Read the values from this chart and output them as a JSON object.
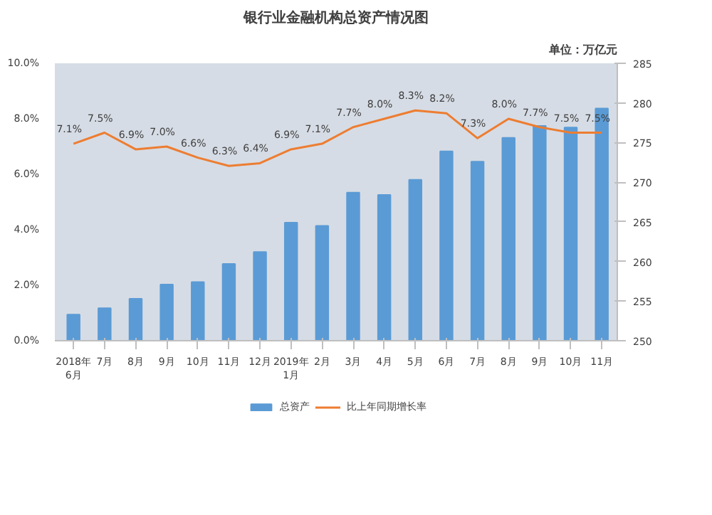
{
  "chart_data": {
    "type": "bar",
    "title": "银行业金融机构总资产情况图",
    "annotations": [
      "单位：万亿元"
    ],
    "categories": [
      "2018年\n6月",
      "7月",
      "8月",
      "9月",
      "10月",
      "11月",
      "12月",
      "2019年\n1月",
      "2月",
      "3月",
      "4月",
      "5月",
      "6月",
      "7月",
      "8月",
      "9月",
      "10月",
      "11月"
    ],
    "series": [
      {
        "name": "总资产",
        "axis": "y2",
        "color": "#5b9bd5",
        "values": [
          253.3,
          254.1,
          255.3,
          257.1,
          257.4,
          259.7,
          261.2,
          264.9,
          264.5,
          268.7,
          268.4,
          270.3,
          273.9,
          272.6,
          275.6,
          277.1,
          276.9,
          279.3
        ]
      },
      {
        "name": "比上年同期增长率",
        "type": "line",
        "axis": "y",
        "color": "#ed7d31",
        "values": [
          7.1,
          7.5,
          6.9,
          7.0,
          6.6,
          6.3,
          6.4,
          6.9,
          7.1,
          7.7,
          8.0,
          8.3,
          8.2,
          7.3,
          8.0,
          7.7,
          7.5,
          7.5
        ],
        "value_labels": [
          "7.1%",
          "7.5%",
          "6.9%",
          "7.0%",
          "6.6%",
          "6.3%",
          "6.4%",
          "6.9%",
          "7.1%",
          "7.7%",
          "8.0%",
          "8.3%",
          "8.2%",
          "7.3%",
          "8.0%",
          "7.7%",
          "7.5%",
          "7.5%"
        ]
      }
    ],
    "ylim": [
      0,
      10
    ],
    "yticks": [
      {
        "value": 0,
        "label": "0.0%"
      },
      {
        "value": 2,
        "label": "2.0%"
      },
      {
        "value": 4,
        "label": "4.0%"
      },
      {
        "value": 6,
        "label": "6.0%"
      },
      {
        "value": 8,
        "label": "8.0%"
      },
      {
        "value": 10,
        "label": "10.0%"
      }
    ],
    "y2lim": [
      250,
      285
    ],
    "y2ticks": [
      250,
      255,
      260,
      265,
      270,
      275,
      280,
      285
    ],
    "grid": false,
    "legend": "bottom",
    "marker": "none",
    "line_style": "solid"
  }
}
